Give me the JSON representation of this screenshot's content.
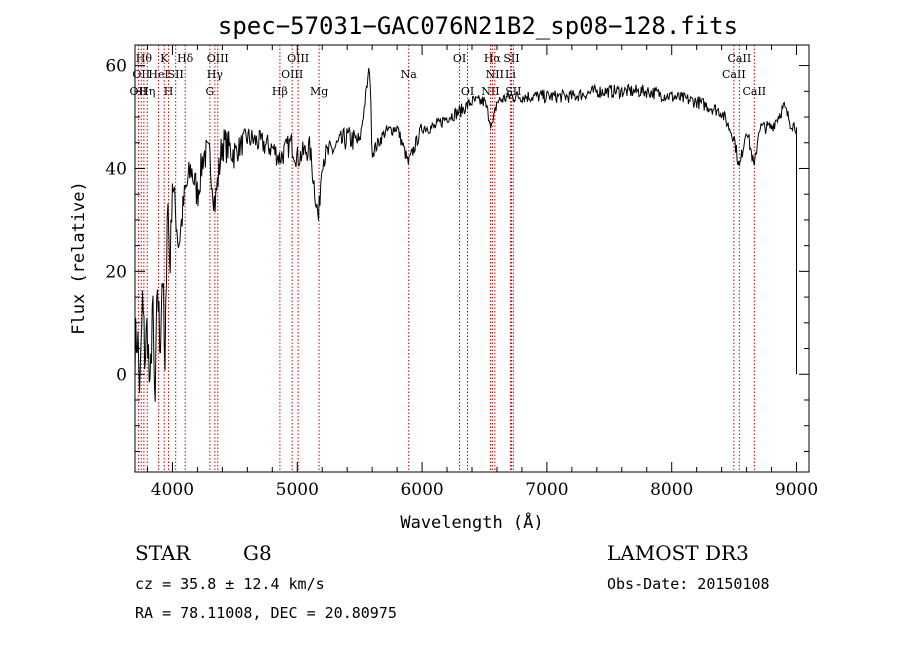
{
  "chart_data": {
    "type": "line",
    "title": "spec−57031−GAC076N21B2_sp08−128.fits",
    "xlabel": "Wavelength (Å)",
    "ylabel": "Flux (relative)",
    "xlim": [
      3700,
      9100
    ],
    "ylim": [
      -19,
      64
    ],
    "x_ticks": [
      4000,
      5000,
      6000,
      7000,
      8000,
      9000
    ],
    "x_tick_labels": [
      "4000",
      "5000",
      "6000",
      "7000",
      "8000",
      "9000"
    ],
    "y_ticks": [
      0,
      20,
      40,
      60
    ],
    "y_tick_labels": [
      "0",
      "20",
      "40",
      "60"
    ],
    "series": [
      {
        "name": "flux",
        "anchors_x": [
          3700,
          3720,
          3740,
          3760,
          3780,
          3800,
          3820,
          3840,
          3860,
          3880,
          3900,
          3920,
          3940,
          3960,
          3980,
          4000,
          4050,
          4100,
          4150,
          4200,
          4250,
          4300,
          4340,
          4400,
          4500,
          4600,
          4700,
          4800,
          4860,
          4950,
          5000,
          5100,
          5170,
          5200,
          5300,
          5400,
          5500,
          5580,
          5600,
          5700,
          5800,
          5890,
          6000,
          6100,
          6200,
          6300,
          6400,
          6500,
          6563,
          6600,
          6700,
          6800,
          7000,
          7200,
          7400,
          7600,
          7800,
          8000,
          8200,
          8400,
          8500,
          8542,
          8600,
          8662,
          8700,
          8800,
          8850,
          8900,
          8950,
          9000,
          9000
        ],
        "anchors_y": [
          5,
          8,
          -4,
          14,
          3,
          10,
          -6,
          15,
          -9,
          18,
          5,
          22,
          -2,
          36,
          20,
          38,
          25,
          35,
          40,
          35,
          43,
          42,
          33,
          45,
          43,
          46,
          45,
          44,
          42,
          45,
          42,
          44,
          30,
          42,
          44,
          46,
          45,
          60,
          43,
          47,
          48,
          41,
          48,
          48,
          50,
          51,
          53,
          53,
          48,
          53,
          54,
          54,
          54,
          54,
          55,
          55,
          55,
          54,
          53,
          51,
          46,
          40,
          48,
          40,
          48,
          48,
          50,
          52,
          49,
          48,
          0
        ]
      }
    ],
    "line_markers": [
      {
        "wavelength": 3727,
        "row": 3,
        "label": "OII"
      },
      {
        "wavelength": 3750,
        "row": 2,
        "label": "OII"
      },
      {
        "wavelength": 3771,
        "row": 1,
        "label": "Hθ"
      },
      {
        "wavelength": 3798,
        "row": 3,
        "label": "Hη"
      },
      {
        "wavelength": 3889,
        "row": 2,
        "label": "HeI"
      },
      {
        "wavelength": 3934,
        "row": 1,
        "label": "K"
      },
      {
        "wavelength": 3969,
        "row": 3,
        "label": "H"
      },
      {
        "wavelength": 4026,
        "row": 2,
        "label": "SII"
      },
      {
        "wavelength": 4102,
        "row": 1,
        "label": "Hδ"
      },
      {
        "wavelength": 4300,
        "row": 3,
        "label": "G"
      },
      {
        "wavelength": 4340,
        "row": 2,
        "label": "Hγ"
      },
      {
        "wavelength": 4363,
        "row": 1,
        "label": "OIII"
      },
      {
        "wavelength": 4861,
        "row": 3,
        "label": "Hβ"
      },
      {
        "wavelength": 4959,
        "row": 2,
        "label": "OIII"
      },
      {
        "wavelength": 5007,
        "row": 1,
        "label": "OIII"
      },
      {
        "wavelength": 5175,
        "row": 3,
        "label": "Mg"
      },
      {
        "wavelength": 5893,
        "row": 2,
        "label": "Na"
      },
      {
        "wavelength": 6300,
        "row": 1,
        "label": "OI"
      },
      {
        "wavelength": 6364,
        "row": 3,
        "label": "OI"
      },
      {
        "wavelength": 6548,
        "row": 3,
        "label": "NII"
      },
      {
        "wavelength": 6563,
        "row": 1,
        "label": "Hα"
      },
      {
        "wavelength": 6583,
        "row": 2,
        "label": "NII"
      },
      {
        "wavelength": 6708,
        "row": 2,
        "label": "Li"
      },
      {
        "wavelength": 6716,
        "row": 1,
        "label": "SII"
      },
      {
        "wavelength": 6731,
        "row": 3,
        "label": "SII"
      },
      {
        "wavelength": 8498,
        "row": 2,
        "label": "CaII"
      },
      {
        "wavelength": 8542,
        "row": 1,
        "label": "CaII"
      },
      {
        "wavelength": 8662,
        "row": 3,
        "label": "CaII"
      }
    ]
  },
  "info": {
    "class_label": "STAR",
    "subclass": "G8",
    "survey": "LAMOST DR3",
    "cz_text": "cz = 35.8 ± 12.4 km/s",
    "obs_date_text": "Obs-Date: 20150108",
    "radec_text": "RA =  78.11008, DEC =  20.80975"
  },
  "colors": {
    "spectrum": "#000000",
    "markers": "#cc0000",
    "axes": "#000000"
  }
}
